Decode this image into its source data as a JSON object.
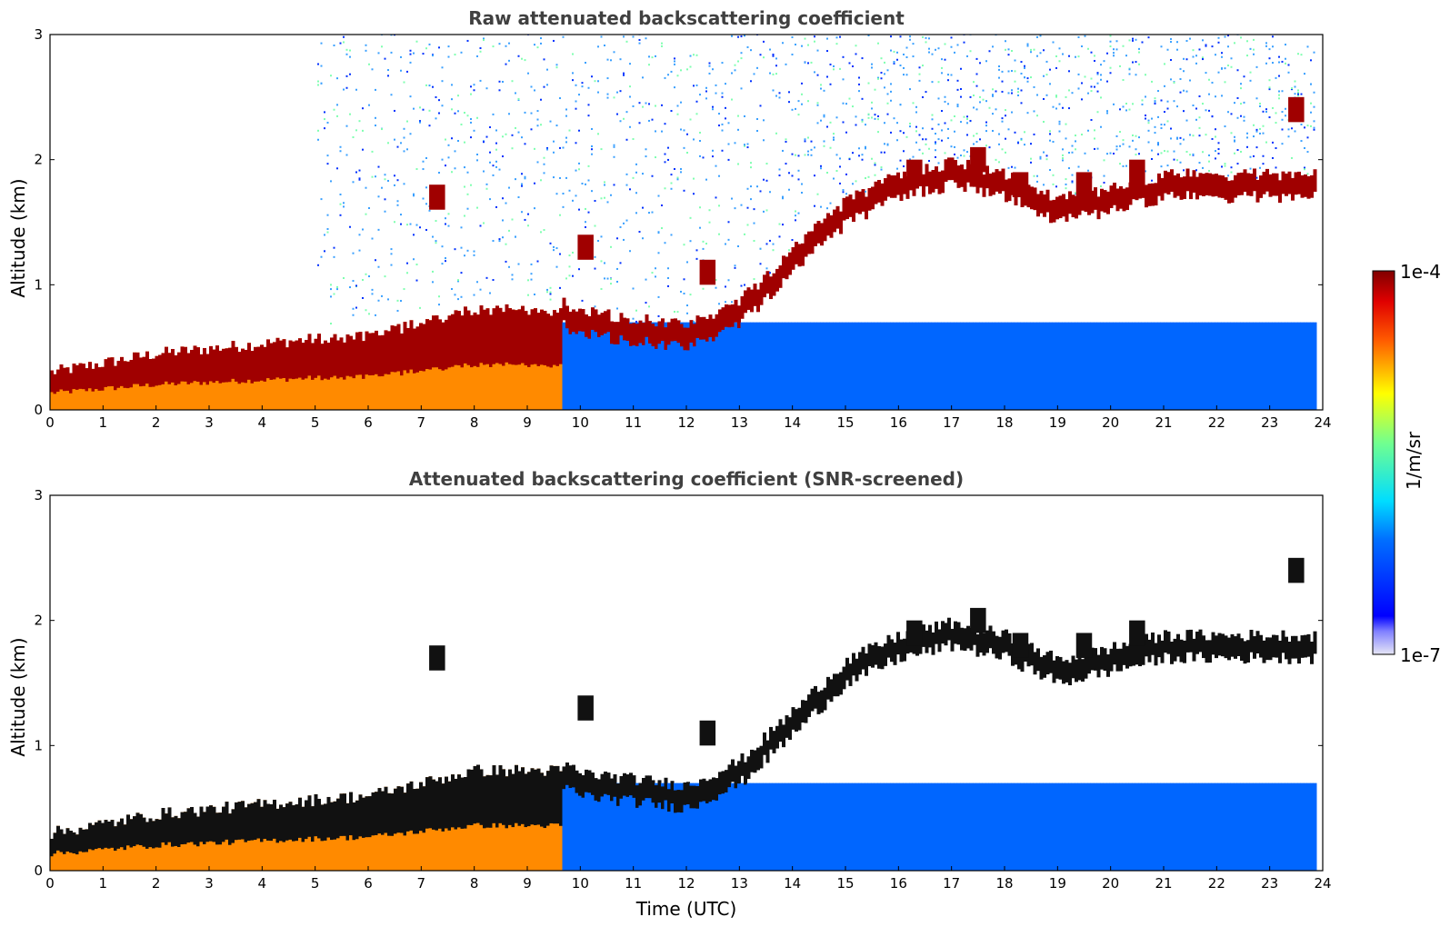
{
  "chart_data": [
    {
      "type": "heatmap",
      "title": "Raw attenuated backscattering coefficient",
      "xlabel": "",
      "ylabel": "Altitude (km)",
      "xlim": [
        0,
        24
      ],
      "ylim": [
        0,
        3
      ],
      "xticks": [
        "0",
        "1",
        "2",
        "3",
        "4",
        "5",
        "6",
        "7",
        "8",
        "9",
        "10",
        "11",
        "12",
        "13",
        "14",
        "15",
        "16",
        "17",
        "18",
        "19",
        "20",
        "21",
        "22",
        "23",
        "24"
      ],
      "yticks": [
        "0",
        "1",
        "2",
        "3"
      ],
      "layers": {
        "boundary_layer_top_km": [
          [
            0,
            0.3
          ],
          [
            2,
            0.45
          ],
          [
            4.5,
            0.55
          ],
          [
            6,
            0.6
          ],
          [
            8,
            0.8
          ],
          [
            9.5,
            0.8
          ],
          [
            10,
            0.7
          ],
          [
            12,
            0.6
          ],
          [
            13,
            0.8
          ],
          [
            14,
            1.2
          ],
          [
            15,
            1.6
          ],
          [
            16,
            1.8
          ],
          [
            17,
            1.9
          ],
          [
            18,
            1.8
          ],
          [
            19,
            1.6
          ],
          [
            20,
            1.7
          ],
          [
            21,
            1.8
          ]
        ],
        "cloud_segments": [
          [
            7.3,
            1.7
          ],
          [
            10.1,
            1.3
          ],
          [
            12.4,
            1.1
          ],
          [
            16.3,
            1.9
          ],
          [
            17.5,
            2.0
          ],
          [
            18.3,
            1.8
          ],
          [
            19.5,
            1.8
          ],
          [
            20.5,
            1.9
          ],
          [
            23.5,
            2.4
          ]
        ],
        "clean_bl_top_km": 0.7
      }
    },
    {
      "type": "heatmap",
      "title": "Attenuated backscattering coefficient (SNR-screened)",
      "xlabel": "Time (UTC)",
      "ylabel": "Altitude (km)",
      "xlim": [
        0,
        24
      ],
      "ylim": [
        0,
        3
      ],
      "xticks": [
        "0",
        "1",
        "2",
        "3",
        "4",
        "5",
        "6",
        "7",
        "8",
        "9",
        "10",
        "11",
        "12",
        "13",
        "14",
        "15",
        "16",
        "17",
        "18",
        "19",
        "20",
        "21",
        "22",
        "23",
        "24"
      ],
      "yticks": [
        "0",
        "1",
        "2",
        "3"
      ]
    }
  ],
  "colorbar": {
    "max_label": "1e-4",
    "min_label": "1e-7",
    "unit": "1/m/sr",
    "colormap": "jet"
  }
}
